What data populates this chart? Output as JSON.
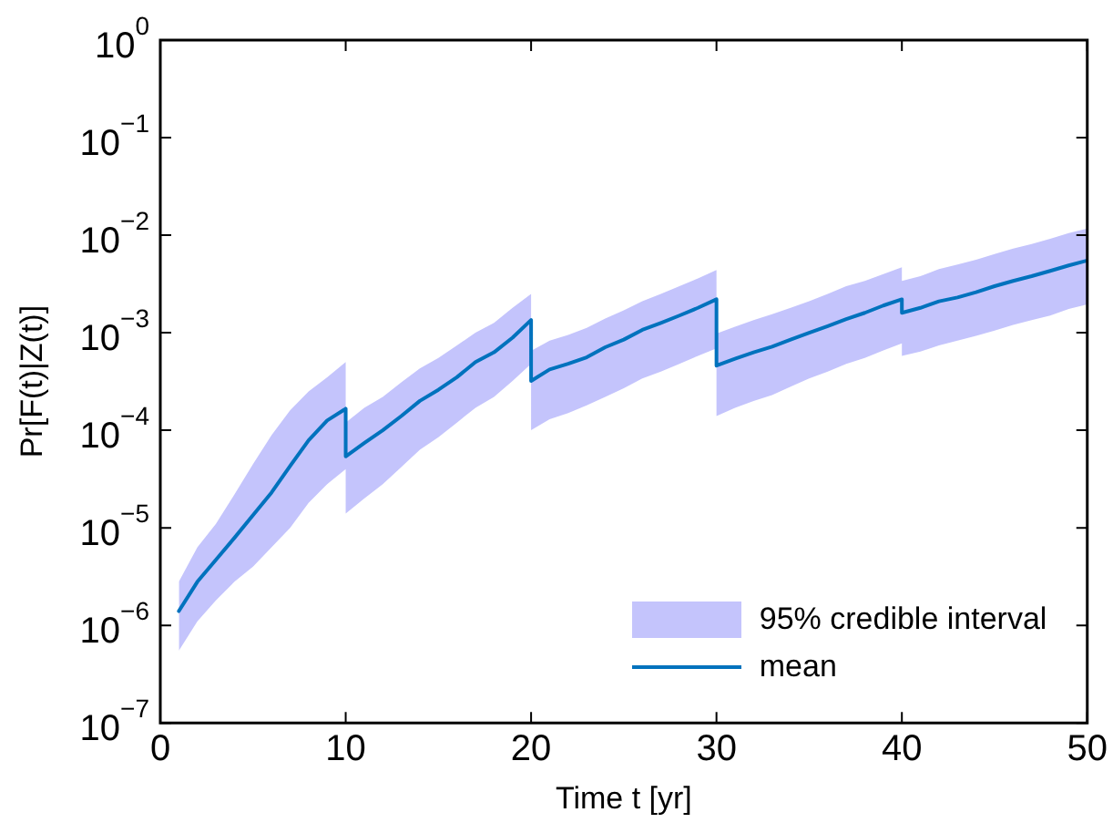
{
  "chart_data": {
    "type": "line",
    "xlabel": "Time t [yr]",
    "ylabel": "Pr[F(t)|Z(t)]",
    "log": "y",
    "grid": false,
    "legend": "bottom right",
    "annotations": [
      "95% credible interval"
    ],
    "xlim": [
      0,
      50
    ],
    "xticks": [
      0,
      10,
      20,
      30,
      40,
      50
    ],
    "ylim": [
      1e-07,
      1
    ],
    "yticks": [
      {
        "value": 1e-07,
        "label": "10$^{−7}$"
      },
      {
        "value": 1e-06,
        "label": "10$^{−6}$"
      },
      {
        "value": 1e-05,
        "label": "10$^{−5}$"
      },
      {
        "value": 0.0001,
        "label": "10$^{−4}$"
      },
      {
        "value": 0.001,
        "label": "10$^{−3}$"
      },
      {
        "value": 0.01,
        "label": "10$^{−2}$"
      },
      {
        "value": 0.1,
        "label": "10$^{−1}$"
      },
      {
        "value": 1,
        "label": "10$^{0}$"
      }
    ],
    "x": [
      1,
      2,
      3,
      4,
      5,
      6,
      7,
      8,
      9,
      10,
      10,
      11,
      12,
      13,
      14,
      15,
      16,
      17,
      18,
      19,
      20,
      20,
      21,
      22,
      23,
      24,
      25,
      26,
      27,
      28,
      29,
      30,
      30,
      31,
      32,
      33,
      34,
      35,
      36,
      37,
      38,
      39,
      40,
      40,
      41,
      42,
      43,
      44,
      45,
      46,
      47,
      48,
      49,
      50
    ],
    "series": [
      {
        "name": "mean",
        "color": "#0072bd",
        "values": [
          1.4e-06,
          2.8e-06,
          4.7e-06,
          7.9e-06,
          1.35e-05,
          2.3e-05,
          4.3e-05,
          7.9e-05,
          0.000126,
          0.000166,
          5.4e-05,
          7.4e-05,
          0.0001,
          0.00014,
          0.0002,
          0.00026,
          0.00035,
          0.0005,
          0.00063,
          0.00089,
          0.00135,
          0.00032,
          0.00042,
          0.00048,
          0.00056,
          0.00071,
          0.00085,
          0.00107,
          0.00126,
          0.0015,
          0.0018,
          0.0022,
          0.00046,
          0.00054,
          0.00063,
          0.00072,
          0.00085,
          0.001,
          0.00117,
          0.00138,
          0.0016,
          0.0019,
          0.0022,
          0.0016,
          0.0018,
          0.0021,
          0.0023,
          0.0026,
          0.003,
          0.0034,
          0.0038,
          0.0043,
          0.0049,
          0.0055
        ],
        "lower": [
          5.5e-07,
          1.1e-06,
          1.8e-06,
          2.8e-06,
          4e-06,
          6.3e-06,
          1e-05,
          1.8e-05,
          2.8e-05,
          4e-05,
          1.4e-05,
          2e-05,
          2.8e-05,
          4.2e-05,
          6.3e-05,
          8.5e-05,
          0.00012,
          0.00017,
          0.00022,
          0.00032,
          0.00048,
          0.0001,
          0.00013,
          0.00015,
          0.00018,
          0.00022,
          0.00027,
          0.00034,
          0.0004,
          0.00048,
          0.00058,
          0.00069,
          0.00014,
          0.00017,
          0.0002,
          0.00023,
          0.00028,
          0.00034,
          0.0004,
          0.00048,
          0.00055,
          0.00066,
          0.00078,
          0.00058,
          0.00064,
          0.00074,
          0.00083,
          0.00093,
          0.00105,
          0.0012,
          0.00135,
          0.0015,
          0.00175,
          0.00195
        ],
        "upper": [
          2.8e-06,
          6.3e-06,
          1.1e-05,
          2.2e-05,
          4.5e-05,
          8.9e-05,
          0.00016,
          0.00025,
          0.00035,
          0.0005,
          0.00012,
          0.00017,
          0.00022,
          0.00031,
          0.00043,
          0.00055,
          0.00074,
          0.001,
          0.00126,
          0.0018,
          0.0025,
          0.00065,
          0.00083,
          0.00095,
          0.00112,
          0.0014,
          0.0017,
          0.0021,
          0.0025,
          0.003,
          0.0036,
          0.0044,
          0.00098,
          0.00115,
          0.00135,
          0.00155,
          0.0018,
          0.0021,
          0.0025,
          0.003,
          0.0034,
          0.004,
          0.0047,
          0.0034,
          0.0038,
          0.0045,
          0.005,
          0.0056,
          0.0064,
          0.0073,
          0.0081,
          0.0092,
          0.0105,
          0.0117
        ]
      }
    ]
  }
}
